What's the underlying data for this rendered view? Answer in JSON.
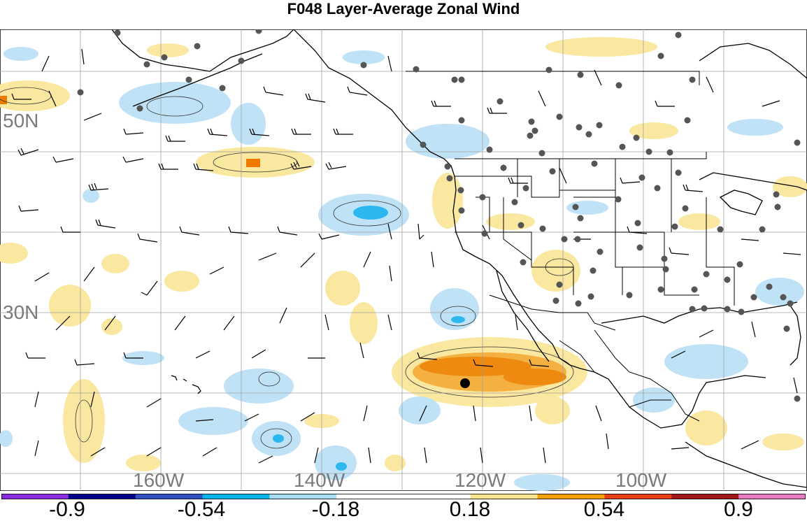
{
  "title": "F048 Layer-Average Zonal Wind",
  "lat_labels": [
    "50N",
    "30N"
  ],
  "lon_labels": [
    "160W",
    "140W",
    "120W",
    "100W"
  ],
  "colorbar": {
    "colors": [
      "#8a2be2",
      "#00008b",
      "#3050c0",
      "#00b4ee",
      "#a8dcf4",
      "#ffffff",
      "#ffffff",
      "#f8e48c",
      "#f4a000",
      "#e84010",
      "#a01818",
      "#e87cc0"
    ],
    "labels": [
      "-0.9",
      "-0.54",
      "-0.18",
      "0.18",
      "0.54",
      "0.9"
    ]
  },
  "colors": {
    "positive_light": "#fbe8a0",
    "positive_mid": "#f0a020",
    "positive_strong": "#ee7a00",
    "negative_light": "#bfe2f6",
    "negative_mid": "#2cb8ee",
    "coast": "#000000",
    "grid": "#a0a0a0",
    "station": "#555555"
  }
}
